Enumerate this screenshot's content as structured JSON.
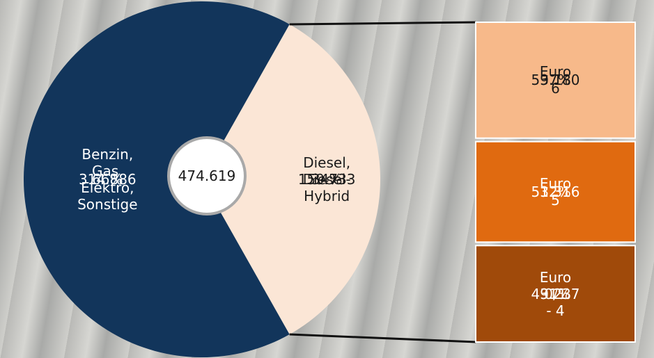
{
  "chart_data": {
    "type": "pie-of-bar",
    "total": {
      "value": 474619,
      "label": "474.619"
    },
    "pie": {
      "categories": [
        "Benzin, Gas,\nElektro, Sonstige",
        "Diesel,\nDiesel-Hybrid"
      ],
      "values": [
        314886,
        159733
      ],
      "value_labels": [
        "314.886",
        "159.733"
      ],
      "percents": [
        66,
        34
      ],
      "percent_labels": [
        "66%",
        "34%"
      ],
      "colors": [
        "#12355b",
        "#fbe6d6"
      ]
    },
    "breakdown": {
      "categories": [
        "Euro 6",
        "Euro 5",
        "Euro 0/1 - 4"
      ],
      "values": [
        59180,
        51316,
        49237
      ],
      "value_labels": [
        "59.180",
        "51.316",
        "49.237"
      ],
      "percents": [
        37,
        32,
        31
      ],
      "percent_labels": [
        "37%",
        "32%",
        "31%"
      ],
      "colors": [
        "#f7b98a",
        "#e06a10",
        "#a04a0a"
      ]
    }
  }
}
